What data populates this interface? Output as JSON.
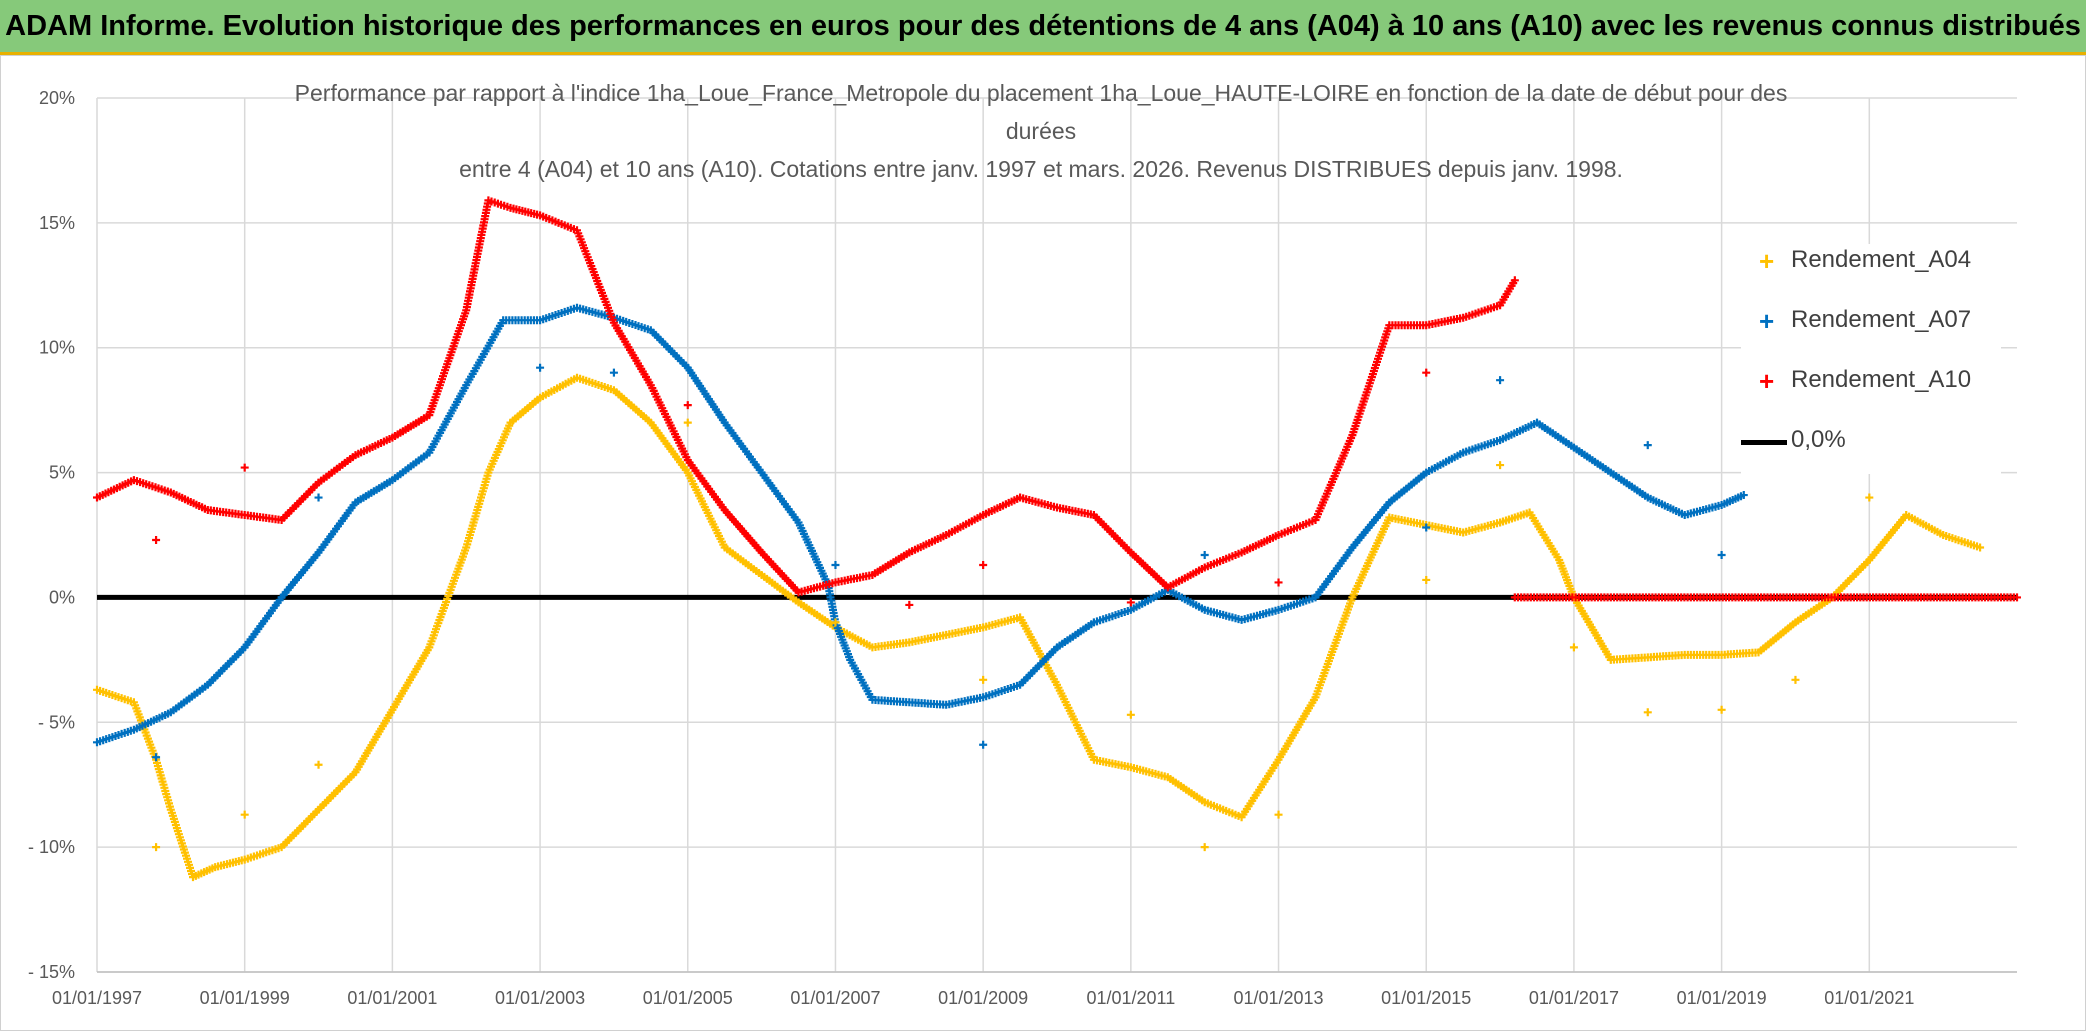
{
  "header": {
    "title": "ADAM Informe. Evolution historique des performances en euros pour des détentions de 4 ans (A04) à 10 ans (A10) avec les revenus connus distribués"
  },
  "colors": {
    "banner": "#86c97a",
    "A04": "#ffc000",
    "A07": "#0070c0",
    "A10": "#ff0000",
    "zero": "#000000",
    "grid": "#d9d9d9"
  },
  "chart_data": {
    "type": "scatter",
    "title_lines": [
      "Performance par rapport à l'indice 1ha_Loue_France_Metropole  du placement 1ha_Loue_HAUTE-LOIRE en fonction de la date de début pour des",
      "durées",
      "entre 4 (A04) et 10 ans (A10). Cotations entre janv. 1997 et mars. 2026. Revenus DISTRIBUES depuis janv. 1998."
    ],
    "xlabel": "",
    "ylabel": "",
    "xlim": [
      1997.0,
      2023.0
    ],
    "ylim": [
      -15,
      20
    ],
    "x_tick_labels": [
      "01/01/1997",
      "01/01/1999",
      "01/01/2001",
      "01/01/2003",
      "01/01/2005",
      "01/01/2007",
      "01/01/2009",
      "01/01/2011",
      "01/01/2013",
      "01/01/2015",
      "01/01/2017",
      "01/01/2019",
      "01/01/2021"
    ],
    "x_tick_values": [
      1997,
      1999,
      2001,
      2003,
      2005,
      2007,
      2009,
      2011,
      2013,
      2015,
      2017,
      2019,
      2021
    ],
    "y_tick_labels": [
      "20%",
      "15%",
      "10%",
      "5%",
      "0%",
      "- 5%",
      "- 10%",
      "- 15%"
    ],
    "y_tick_values": [
      20,
      15,
      10,
      5,
      0,
      -5,
      -10,
      -15
    ],
    "legend": {
      "position": "top-right",
      "entries": [
        "Rendement_A04",
        "Rendement_A07",
        "Rendement_A10",
        "0,0%"
      ]
    },
    "series": [
      {
        "name": "Rendement_A04",
        "color": "#ffc000",
        "x": [
          1997.0,
          1997.5,
          1997.8,
          1998.0,
          1998.3,
          1998.6,
          1999.0,
          1999.5,
          2000.0,
          2000.5,
          2001.0,
          2001.5,
          2002.0,
          2002.3,
          2002.6,
          2003.0,
          2003.5,
          2004.0,
          2004.5,
          2005.0,
          2005.5,
          2006.0,
          2006.5,
          2007.0,
          2007.5,
          2008.0,
          2008.5,
          2009.0,
          2009.5,
          2010.0,
          2010.5,
          2011.0,
          2011.5,
          2012.0,
          2012.5,
          2013.0,
          2013.5,
          2014.0,
          2014.5,
          2015.0,
          2015.5,
          2016.0,
          2016.4,
          2016.8,
          2017.0,
          2017.5,
          2018.0,
          2018.5,
          2019.0,
          2019.5,
          2020.0,
          2020.5,
          2021.0,
          2021.5,
          2022.0,
          2022.5
        ],
        "y": [
          -3.7,
          -4.2,
          -6.5,
          -8.5,
          -11.2,
          -10.8,
          -10.5,
          -10.0,
          -8.5,
          -7.0,
          -4.5,
          -2.0,
          2.0,
          5.0,
          7.0,
          8.0,
          8.8,
          8.3,
          7.0,
          5.0,
          2.0,
          0.9,
          -0.2,
          -1.2,
          -2.0,
          -1.8,
          -1.5,
          -1.2,
          -0.8,
          -3.5,
          -6.5,
          -6.8,
          -7.2,
          -8.2,
          -8.8,
          -6.5,
          -4.0,
          0.0,
          3.2,
          2.9,
          2.6,
          3.0,
          3.4,
          1.5,
          0.0,
          -2.5,
          -2.4,
          -2.3,
          -2.3,
          -2.2,
          -1.0,
          0.0,
          1.5,
          3.3,
          2.5,
          2.0
        ]
      },
      {
        "name": "Rendement_A07",
        "color": "#0070c0",
        "x": [
          1997.0,
          1997.5,
          1998.0,
          1998.5,
          1999.0,
          1999.5,
          2000.0,
          2000.5,
          2001.0,
          2001.5,
          2002.0,
          2002.5,
          2003.0,
          2003.5,
          2004.0,
          2004.5,
          2005.0,
          2005.5,
          2006.0,
          2006.5,
          2006.9,
          2007.0,
          2007.2,
          2007.5,
          2008.0,
          2008.5,
          2009.0,
          2009.5,
          2010.0,
          2010.5,
          2011.0,
          2011.5,
          2012.0,
          2012.5,
          2013.0,
          2013.5,
          2014.0,
          2014.5,
          2015.0,
          2015.5,
          2016.0,
          2016.5,
          2017.0,
          2017.5,
          2018.0,
          2018.5,
          2019.0,
          2019.3
        ],
        "y": [
          -5.8,
          -5.3,
          -4.6,
          -3.5,
          -2.0,
          0.0,
          1.8,
          3.8,
          4.7,
          5.8,
          8.5,
          11.1,
          11.1,
          11.6,
          11.2,
          10.7,
          9.2,
          7.0,
          5.0,
          3.0,
          0.5,
          -1.0,
          -2.5,
          -4.1,
          -4.2,
          -4.3,
          -4.0,
          -3.5,
          -2.0,
          -1.0,
          -0.5,
          0.3,
          -0.5,
          -0.9,
          -0.5,
          0.0,
          2.0,
          3.8,
          5.0,
          5.8,
          6.3,
          7.0,
          6.0,
          5.0,
          4.0,
          3.3,
          3.7,
          4.1
        ]
      },
      {
        "name": "Rendement_A10",
        "color": "#ff0000",
        "x": [
          1997.0,
          1997.5,
          1998.0,
          1998.5,
          1999.0,
          1999.5,
          2000.0,
          2000.5,
          2001.0,
          2001.5,
          2002.0,
          2002.3,
          2002.6,
          2003.0,
          2003.5,
          2004.0,
          2004.5,
          2005.0,
          2005.5,
          2006.0,
          2006.5,
          2007.0,
          2007.5,
          2008.0,
          2008.5,
          2009.0,
          2009.5,
          2010.0,
          2010.5,
          2011.0,
          2011.5,
          2012.0,
          2012.5,
          2013.0,
          2013.5,
          2014.0,
          2014.5,
          2015.0,
          2015.5,
          2016.0,
          2016.2
        ],
        "y": [
          4.0,
          4.7,
          4.2,
          3.5,
          3.3,
          3.1,
          4.6,
          5.7,
          6.4,
          7.3,
          11.5,
          15.9,
          15.6,
          15.3,
          14.7,
          11.0,
          8.5,
          5.5,
          3.5,
          1.8,
          0.2,
          0.6,
          0.9,
          1.8,
          2.5,
          3.3,
          4.0,
          3.6,
          3.3,
          1.8,
          0.4,
          1.2,
          1.8,
          2.5,
          3.1,
          6.5,
          10.9,
          10.9,
          11.2,
          11.7,
          12.7
        ]
      },
      {
        "name": "Rendement_A10_zero_tail",
        "color": "#ff0000",
        "x": [
          2016.2,
          2023.0
        ],
        "y": [
          0,
          0
        ]
      }
    ],
    "outliers": [
      {
        "series": "Rendement_A04",
        "x": [
          1997.8,
          1999.0,
          2000.0,
          2005.0,
          2007.0,
          2009.0,
          2011.0,
          2012.0,
          2013.0,
          2015.0,
          2016.0,
          2017.0,
          2018.0,
          2019.0,
          2020.0,
          2021.0
        ],
        "y": [
          -10.0,
          -8.7,
          -6.7,
          7.0,
          -1.0,
          -3.3,
          -4.7,
          -10.0,
          -8.7,
          0.7,
          5.3,
          -2.0,
          -4.6,
          -4.5,
          -3.3,
          4.0
        ]
      },
      {
        "series": "Rendement_A07",
        "x": [
          1997.8,
          2000.0,
          2003.0,
          2004.0,
          2007.0,
          2009.0,
          2012.0,
          2015.0,
          2016.0,
          2018.0,
          2019.0
        ],
        "y": [
          -6.4,
          4.0,
          9.2,
          9.0,
          1.3,
          -5.9,
          1.7,
          2.8,
          8.7,
          6.1,
          1.7
        ]
      },
      {
        "series": "Rendement_A10",
        "x": [
          1997.8,
          1999.0,
          2005.0,
          2008.0,
          2009.0,
          2011.0,
          2013.0,
          2015.0
        ],
        "y": [
          2.3,
          5.2,
          7.7,
          -0.3,
          1.3,
          -0.2,
          0.6,
          9.0
        ]
      }
    ]
  }
}
